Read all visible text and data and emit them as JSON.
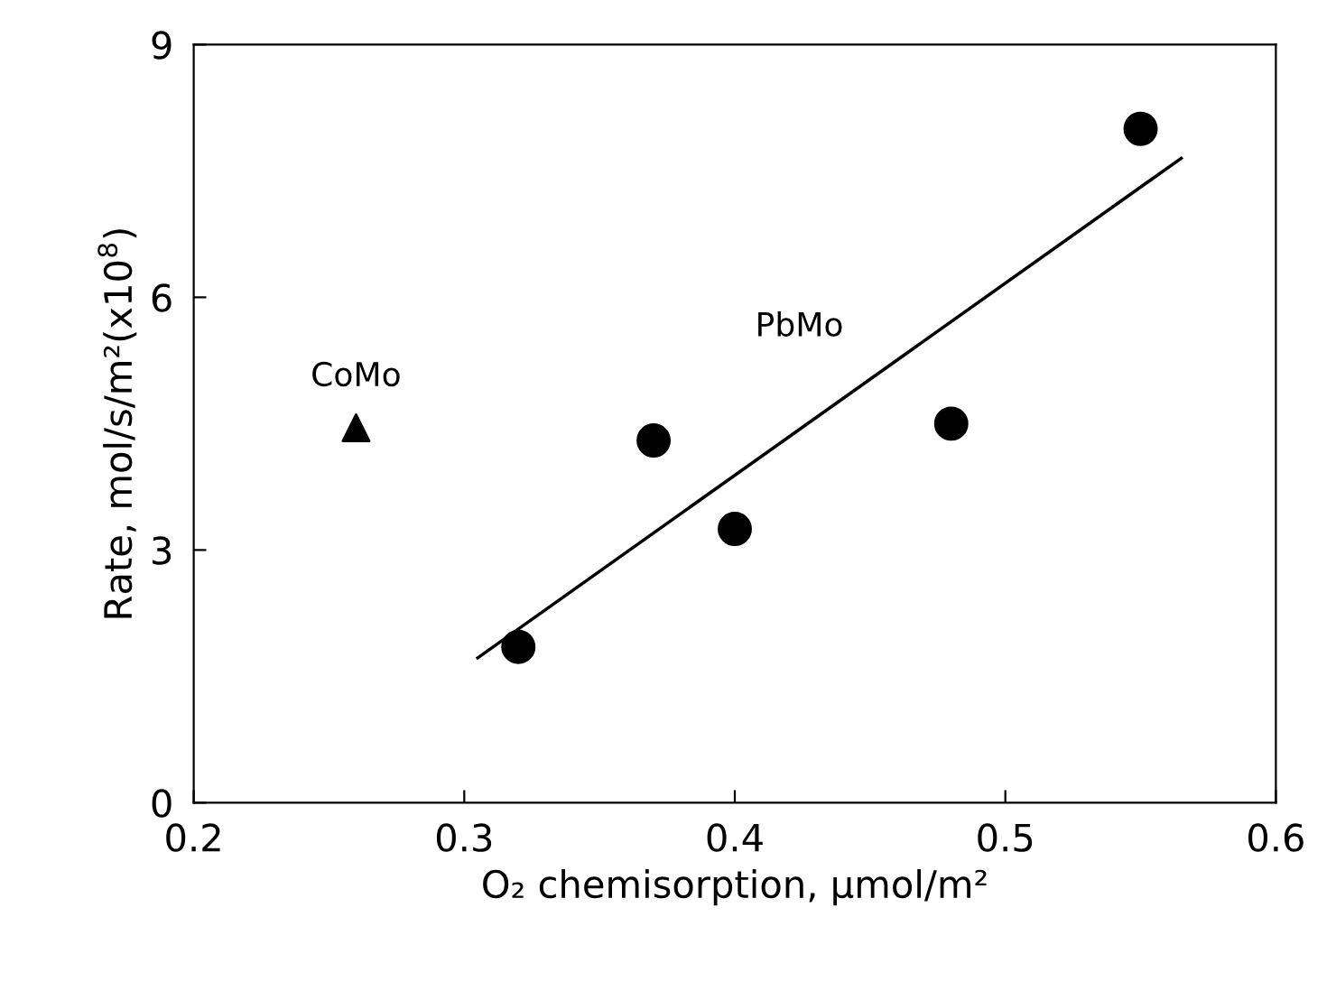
{
  "chart_data": {
    "type": "scatter",
    "xlabel": "O₂ chemisorption, μmol/m²",
    "ylabel": "Rate, mol/s/m²(x10$^{8}$)",
    "xlim": [
      0.2,
      0.6
    ],
    "xticks": [
      0.2,
      0.3,
      0.4,
      0.5,
      0.6
    ],
    "ylim": [
      0,
      9
    ],
    "yticks": [
      0,
      3,
      6,
      9
    ],
    "grid": false,
    "series": [
      {
        "color": "#000000",
        "marker": "circle",
        "x": [
          0.32,
          0.37,
          0.4,
          0.48,
          0.55
        ],
        "values": [
          1.85,
          4.3,
          3.25,
          4.5,
          8.0
        ]
      },
      {
        "name": "CoMo",
        "color": "#000000",
        "marker": "triangle",
        "x": [
          0.26
        ],
        "values": [
          4.45
        ]
      },
      {
        "name": "PbMo",
        "type": "line",
        "color": "#000000",
        "marker": "none",
        "x": [
          0.305,
          0.565
        ],
        "values": [
          1.72,
          7.65
        ]
      }
    ]
  }
}
